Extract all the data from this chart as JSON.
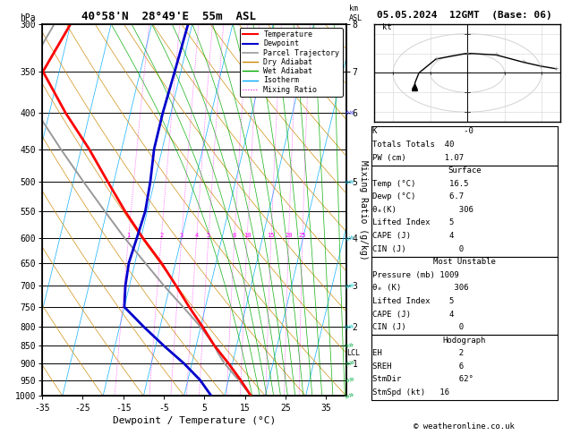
{
  "title_left": "40°58'N  28°49'E  55m  ASL",
  "title_right": "05.05.2024  12GMT  (Base: 06)",
  "xlabel": "Dewpoint / Temperature (°C)",
  "ylabel_left": "hPa",
  "pressure_levels": [
    300,
    350,
    400,
    450,
    500,
    550,
    600,
    650,
    700,
    750,
    800,
    850,
    900,
    950,
    1000
  ],
  "temp_color": "#ff0000",
  "dewp_color": "#0000cc",
  "parcel_color": "#999999",
  "dry_adiabat_color": "#cc8800",
  "wet_adiabat_color": "#00aa00",
  "isotherm_color": "#00aaff",
  "mixing_ratio_color": "#ff00ff",
  "background_color": "#ffffff",
  "x_min": -35,
  "x_max": 40,
  "km_ticks": [
    1,
    2,
    3,
    4,
    5,
    6,
    7,
    8
  ],
  "km_pressures": [
    900,
    800,
    700,
    600,
    500,
    400,
    350,
    300
  ],
  "lcl_pressure": 870,
  "mixing_ratio_labels": [
    "1",
    "2",
    "3",
    "4",
    "5",
    "8",
    "10",
    "15",
    "20",
    "25"
  ],
  "mixing_ratio_values": [
    1,
    2,
    3,
    4,
    5,
    8,
    10,
    15,
    20,
    25
  ],
  "stats": {
    "K": "-0",
    "Totals_Totals": "40",
    "PW_cm": "1.07",
    "Surface_Temp": "16.5",
    "Surface_Dewp": "6.7",
    "Surface_ThetaE": "306",
    "Surface_LI": "5",
    "Surface_CAPE": "4",
    "Surface_CIN": "0",
    "MU_Pressure": "1009",
    "MU_ThetaE": "306",
    "MU_LI": "5",
    "MU_CAPE": "4",
    "MU_CIN": "0",
    "EH": "2",
    "SREH": "6",
    "StmDir": "62°",
    "StmSpd": "16"
  },
  "temperature_profile": {
    "pressure": [
      1000,
      950,
      900,
      850,
      800,
      750,
      700,
      650,
      600,
      550,
      500,
      450,
      400,
      350,
      300
    ],
    "temp": [
      16.5,
      13.0,
      9.0,
      4.5,
      0.5,
      -4.0,
      -8.5,
      -13.5,
      -19.5,
      -25.5,
      -31.5,
      -38.0,
      -46.0,
      -54.0,
      -50.0
    ]
  },
  "dewpoint_profile": {
    "pressure": [
      1000,
      950,
      900,
      850,
      800,
      750,
      700,
      650,
      600,
      550,
      500,
      450,
      400,
      350,
      300
    ],
    "temp": [
      6.7,
      3.0,
      -2.0,
      -8.0,
      -14.0,
      -20.0,
      -21.0,
      -21.5,
      -21.0,
      -20.5,
      -21.0,
      -22.0,
      -22.0,
      -21.5,
      -21.0
    ]
  },
  "parcel_profile": {
    "pressure": [
      1000,
      950,
      900,
      870,
      850,
      800,
      750,
      700,
      650,
      600,
      550,
      500,
      450,
      400,
      350,
      300
    ],
    "temp": [
      16.5,
      12.5,
      8.0,
      5.8,
      4.5,
      0.0,
      -5.5,
      -11.5,
      -17.5,
      -24.0,
      -30.5,
      -37.5,
      -45.0,
      -53.0,
      -58.0,
      -54.0
    ]
  },
  "copyright": "© weatheronline.co.uk",
  "wind_barbs": {
    "pressures": [
      1000,
      950,
      900,
      850,
      800,
      700,
      600,
      500,
      400
    ],
    "speeds": [
      5,
      5,
      6,
      8,
      10,
      12,
      15,
      20,
      25
    ],
    "directions": [
      250,
      255,
      258,
      260,
      262,
      255,
      252,
      265,
      270
    ]
  },
  "hodo_wind": {
    "dirs": [
      62,
      70,
      90,
      130,
      180,
      220,
      250,
      260,
      265
    ],
    "spds": [
      16,
      15,
      13,
      11,
      10,
      12,
      16,
      20,
      24
    ]
  },
  "skew_factor": 22
}
